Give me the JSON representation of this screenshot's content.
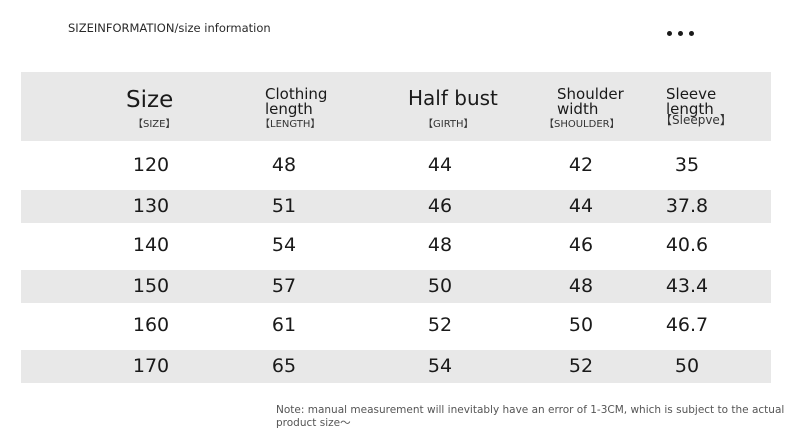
{
  "page_title": "SIZEINFORMATION/size information",
  "menu_icon": "more-horizontal-icon",
  "headers": [
    {
      "key": "size",
      "main": "Size",
      "sub": "【SIZE】"
    },
    {
      "key": "length",
      "main": "Clothing\nlength",
      "sub": "【LENGTH】"
    },
    {
      "key": "bust",
      "main": "Half bust",
      "sub": "【GIRTH】"
    },
    {
      "key": "shoulder",
      "main": "Shoulder\nwidth",
      "sub": "【SHOULDER】"
    },
    {
      "key": "sleeve",
      "main": "Sleeve\nlength",
      "sub": "【Sleepve】"
    }
  ],
  "rows": [
    [
      "120",
      "48",
      "44",
      "42",
      "35"
    ],
    [
      "130",
      "51",
      "46",
      "44",
      "37.8"
    ],
    [
      "140",
      "54",
      "48",
      "46",
      "40.6"
    ],
    [
      "150",
      "57",
      "50",
      "48",
      "43.4"
    ],
    [
      "160",
      "61",
      "52",
      "50",
      "46.7"
    ],
    [
      "170",
      "65",
      "54",
      "52",
      "50"
    ]
  ],
  "note": "Note: manual measurement will inevitably have an error of 1-3CM, which is subject to the actual product size～",
  "colors": {
    "band": "#e8e8e8",
    "text": "#1a1a1a"
  }
}
